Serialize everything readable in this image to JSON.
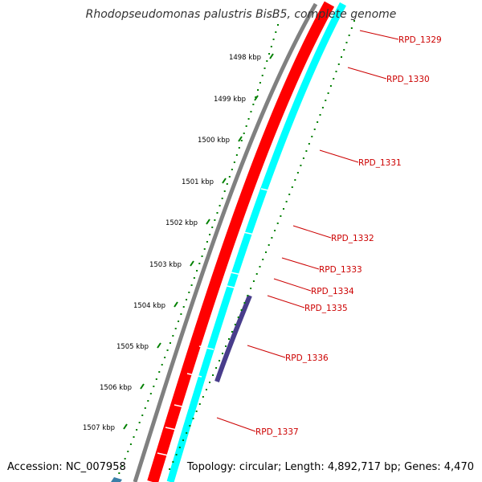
{
  "title": "Rhodopseudomonas palustris BisB5, complete genome",
  "footer": {
    "accession": "Accession: NC_007958",
    "summary": "Topology: circular; Length: 4,892,717 bp; Genes: 4,470"
  },
  "colors": {
    "forward_cds": "#ff0000",
    "reverse_cds": "#00ffff",
    "backbone": "#808080",
    "highlight": "#483d8b",
    "ticks": "#008000",
    "label": "#cc0000"
  },
  "kbp_ticks": [
    "1498 kbp",
    "1499 kbp",
    "1500 kbp",
    "1501 kbp",
    "1502 kbp",
    "1503 kbp",
    "1504 kbp",
    "1505 kbp",
    "1506 kbp",
    "1507 kbp"
  ],
  "genes": [
    {
      "label": "RPD_1329",
      "strand": "forward"
    },
    {
      "label": "RPD_1330",
      "strand": "forward"
    },
    {
      "label": "RPD_1331",
      "strand": "forward"
    },
    {
      "label": "RPD_1332",
      "strand": "forward"
    },
    {
      "label": "RPD_1333",
      "strand": "forward"
    },
    {
      "label": "RPD_1334",
      "strand": "forward"
    },
    {
      "label": "RPD_1335",
      "strand": "forward"
    },
    {
      "label": "RPD_1336",
      "strand": "reverse"
    },
    {
      "label": "RPD_1337",
      "strand": "forward"
    }
  ]
}
